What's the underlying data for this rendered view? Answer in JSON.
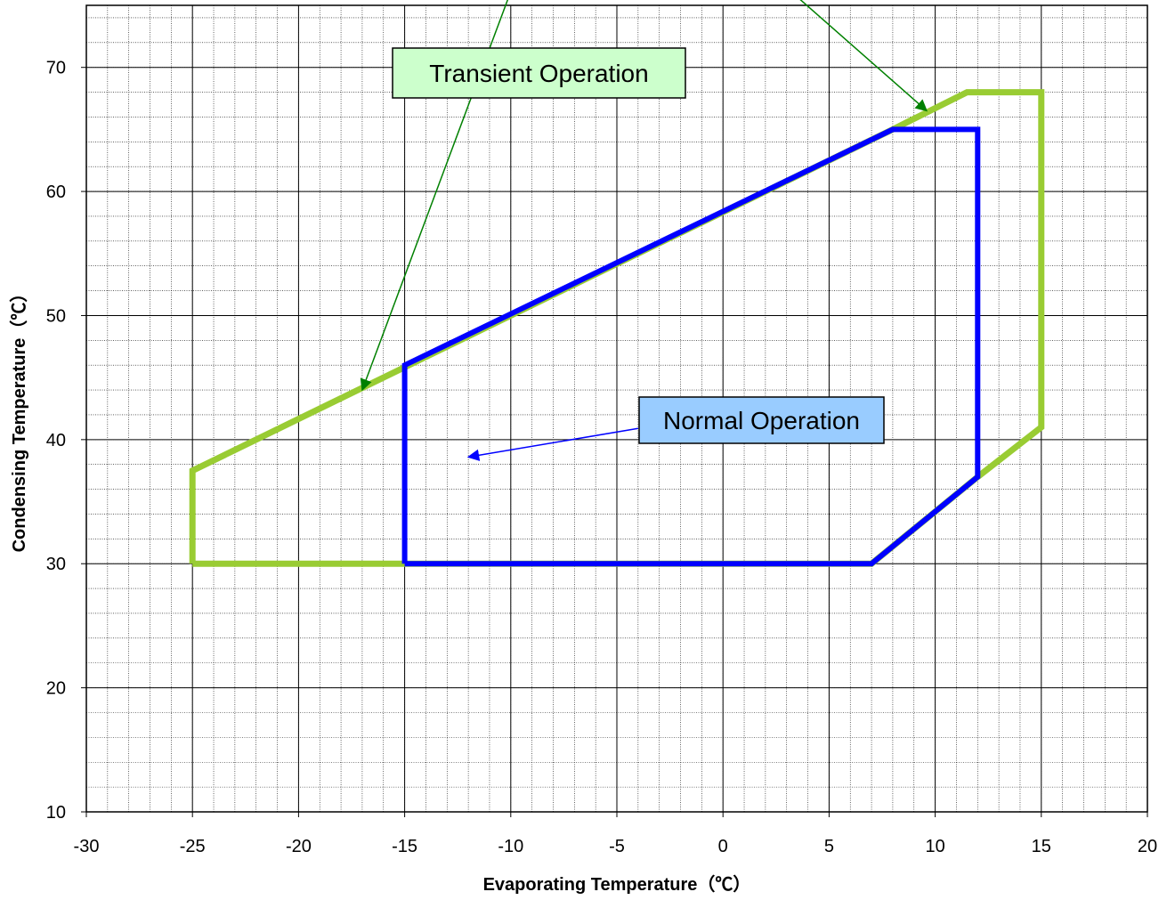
{
  "chart_data": {
    "type": "line",
    "title": "",
    "xlabel": "Evaporating Temperature（℃）",
    "ylabel": "Condensing Temperature（℃）",
    "xlim": [
      -30,
      20
    ],
    "ylim": [
      10,
      75
    ],
    "x_major_ticks": [
      -30,
      -25,
      -20,
      -15,
      -10,
      -5,
      0,
      5,
      10,
      15,
      20
    ],
    "x_tick_labels": [
      "-30",
      "-25",
      "-20",
      "-15",
      "-10",
      "-5",
      "0",
      "5",
      "10",
      "15",
      "20"
    ],
    "y_major_ticks": [
      10,
      20,
      30,
      40,
      50,
      60,
      70
    ],
    "y_tick_labels": [
      "10",
      "20",
      "30",
      "40",
      "50",
      "60",
      "70"
    ],
    "x_minor_step": 1,
    "y_minor_step": 2,
    "grid": true,
    "series": [
      {
        "name": "Transient Operation",
        "color": "#99cc33",
        "closed": true,
        "points": [
          [
            -25,
            30
          ],
          [
            -25,
            37.5
          ],
          [
            8,
            65
          ],
          [
            11.5,
            68
          ],
          [
            15,
            68
          ],
          [
            15,
            41
          ],
          [
            12,
            37
          ],
          [
            7,
            30
          ],
          [
            -25,
            30
          ]
        ]
      },
      {
        "name": "Normal Operation",
        "color": "#0000ff",
        "closed": true,
        "points": [
          [
            -15,
            30
          ],
          [
            -15,
            46
          ],
          [
            8,
            65
          ],
          [
            12,
            65
          ],
          [
            12,
            37
          ],
          [
            7,
            30
          ],
          [
            -15,
            30
          ]
        ]
      }
    ],
    "annotations": [
      {
        "text": "Transient Operation",
        "box_color": "#ccffcc",
        "arrow_color": "#008000",
        "anchor": [
          -17.2,
          85
        ],
        "width": 13.7,
        "height": 4.3,
        "arrows": [
          {
            "from": [
              -8.5,
              83
            ],
            "to": [
              -17,
              44
            ]
          },
          {
            "from": [
              -1.7,
              83.5
            ],
            "to": [
              9.6,
              66.5
            ]
          }
        ]
      },
      {
        "text": "Normal Operation",
        "box_color": "#99ccff",
        "arrow_color": "#0000ff",
        "anchor": [
          -4,
          83
        ],
        "width": 11.3,
        "height": 4.0,
        "arrows": [
          {
            "from": [
              -4,
              40.9
            ],
            "to": [
              -12,
              38.6
            ]
          }
        ]
      }
    ]
  }
}
